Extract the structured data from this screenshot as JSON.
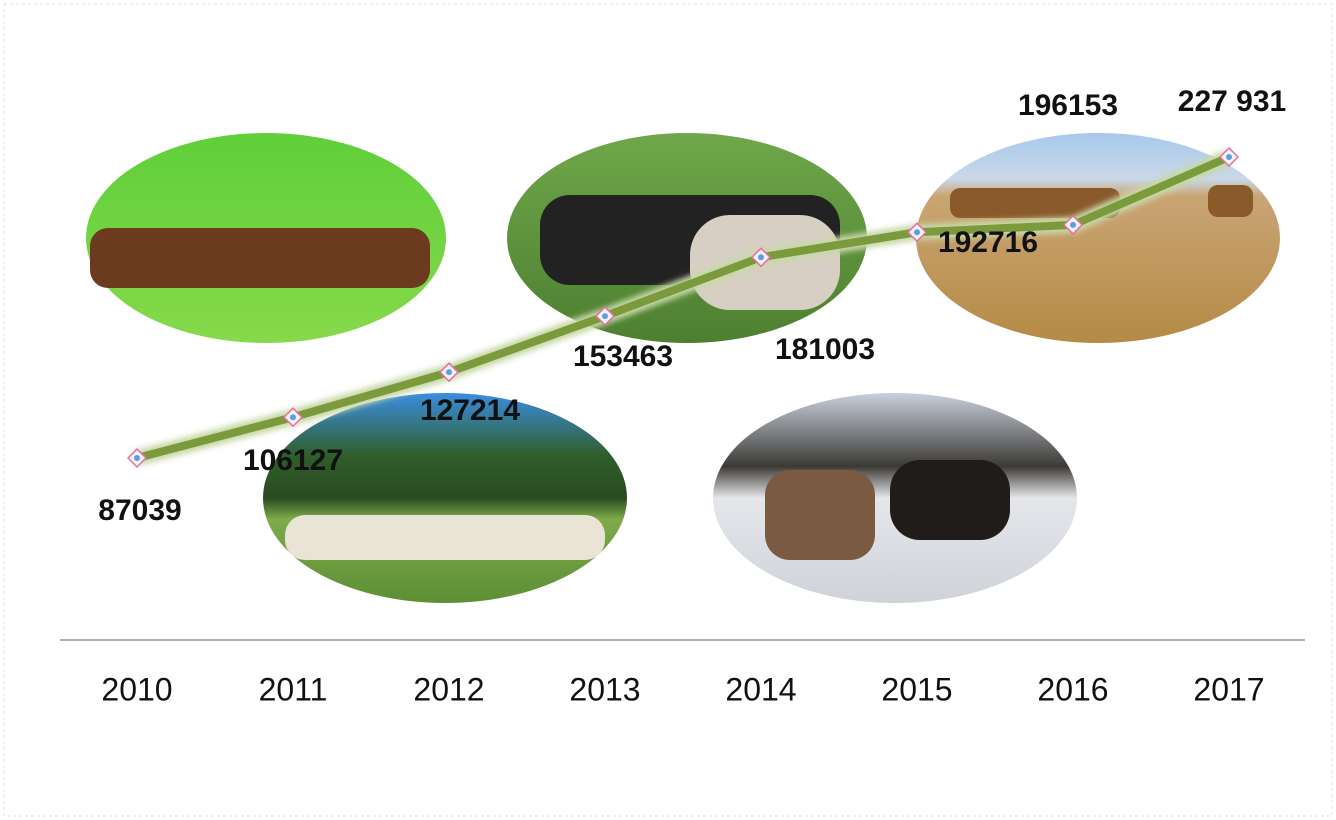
{
  "chart_data": {
    "type": "line",
    "categories": [
      "2010",
      "2011",
      "2012",
      "2013",
      "2014",
      "2015",
      "2016",
      "2017"
    ],
    "values": [
      87039,
      106127,
      127214,
      153463,
      181003,
      192716,
      196153,
      227931
    ],
    "value_labels": [
      "87039",
      "106127",
      "127214",
      "153463",
      "181003",
      "192716",
      "196153",
      "227 931"
    ],
    "color": "#7a9a3c"
  }
}
